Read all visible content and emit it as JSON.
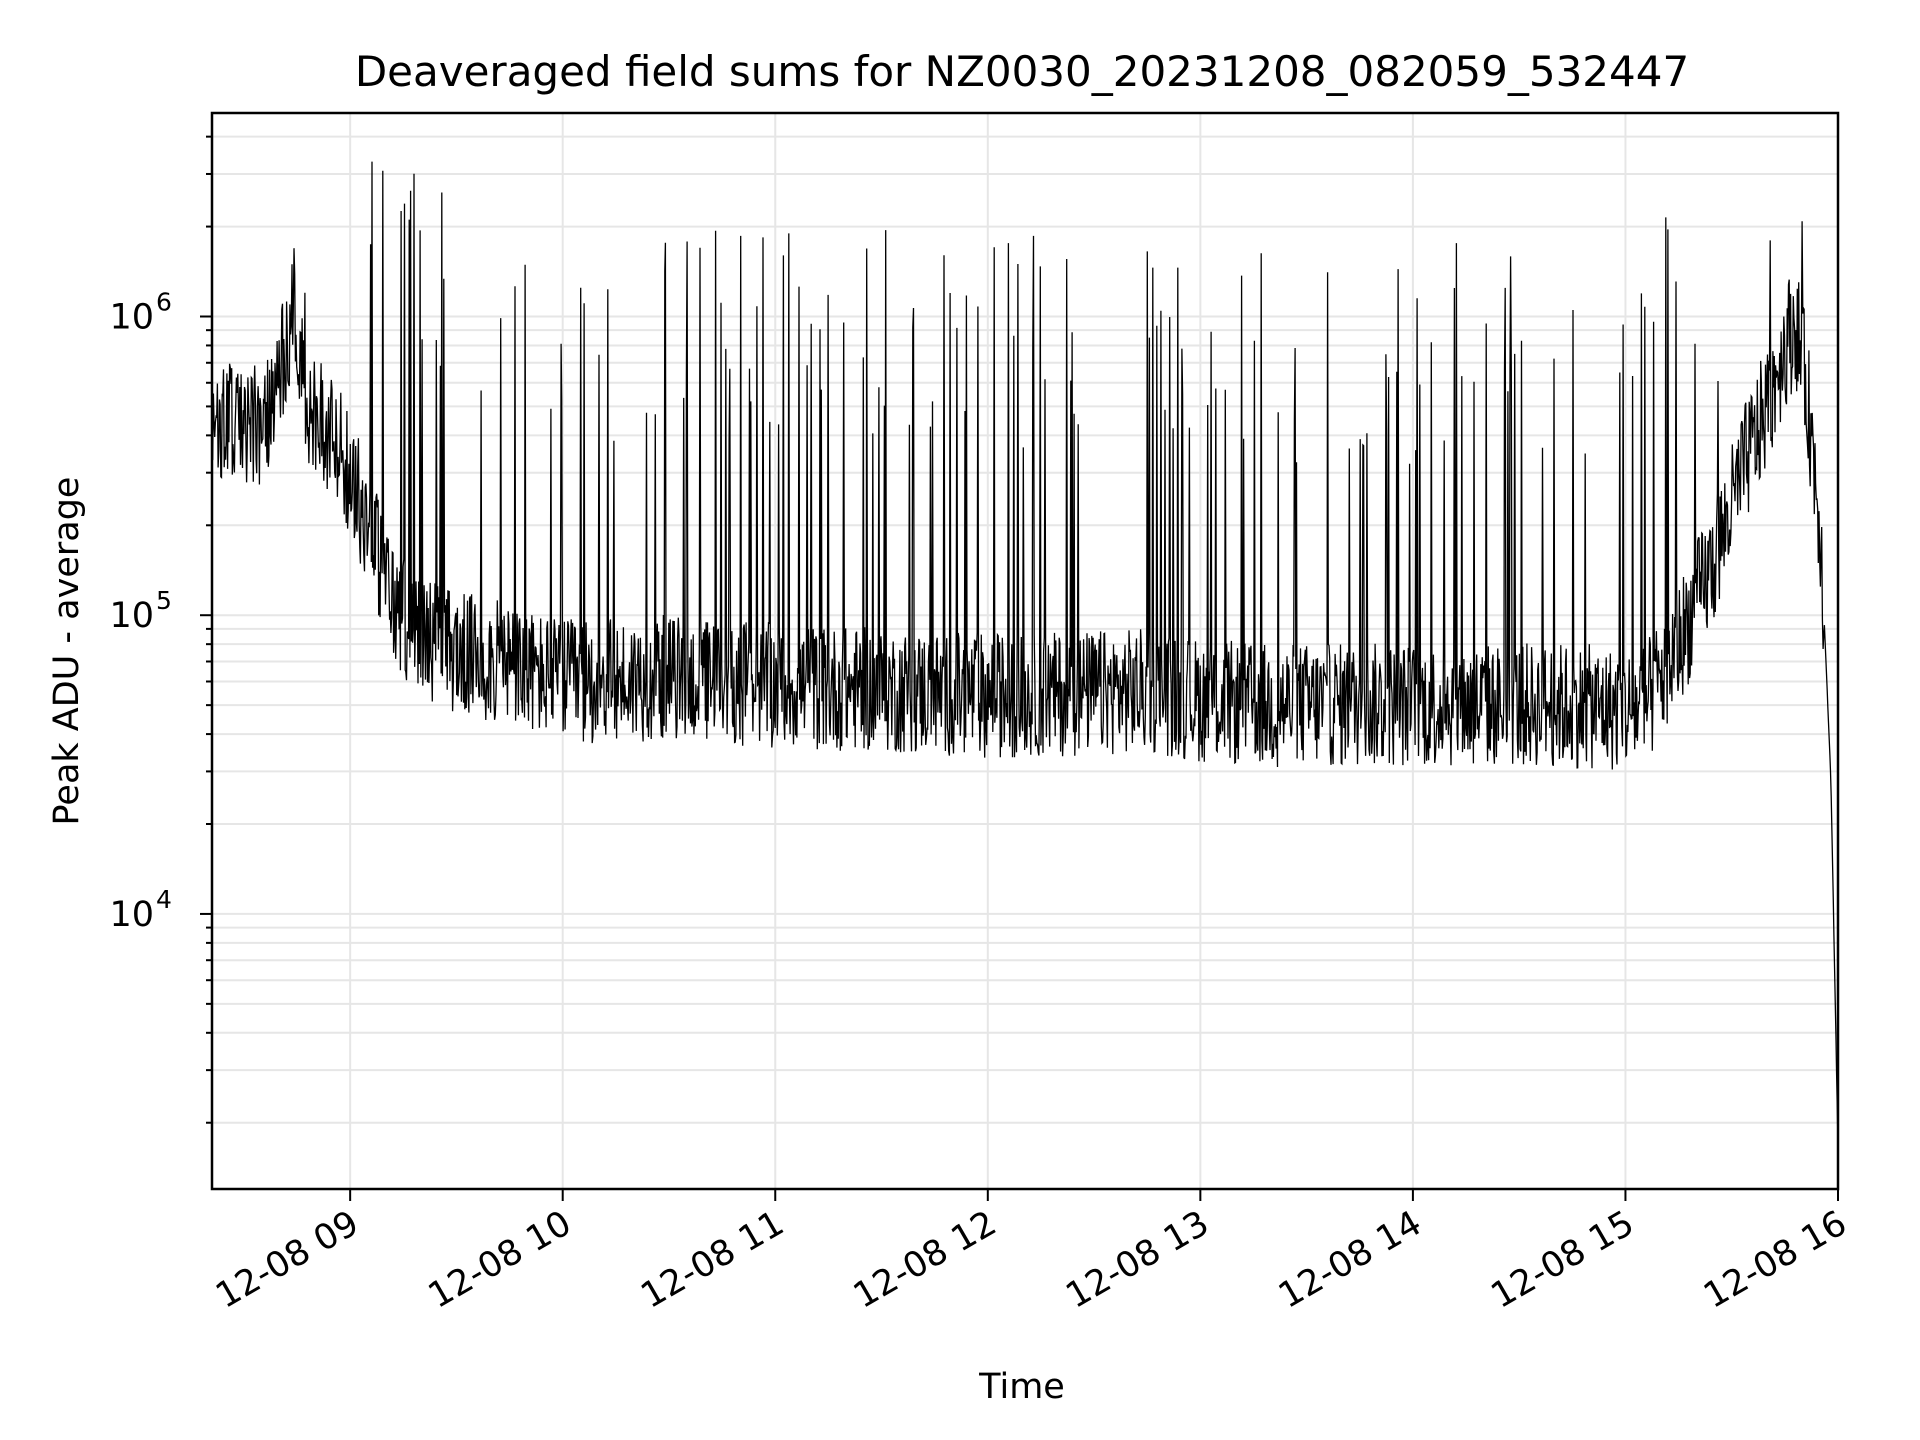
{
  "chart_data": {
    "type": "line",
    "title": "Deaveraged field sums for NZ0030_20231208_082059_532447",
    "xlabel": "Time",
    "ylabel": "Peak ADU - average",
    "y_scale": "log",
    "grid": true,
    "legend": "none",
    "line_color": "#000000",
    "x_ticks": [
      "12-08 09",
      "12-08 10",
      "12-08 11",
      "12-08 12",
      "12-08 13",
      "12-08 14",
      "12-08 15",
      "12-08 16"
    ],
    "y_ticks": [
      {
        "base": "10",
        "exp": "4",
        "value": 10000
      },
      {
        "base": "10",
        "exp": "5",
        "value": 100000
      },
      {
        "base": "10",
        "exp": "6",
        "value": 1000000
      }
    ],
    "xlim": [
      "2023-12-08 08:21",
      "2023-12-08 16:00"
    ],
    "ylim": [
      1200,
      4800000
    ],
    "series": [
      {
        "x": [
          "2023-12-08 08:21",
          "2023-12-08 08:28",
          "2023-12-08 08:34",
          "2023-12-08 08:40",
          "2023-12-08 08:44",
          "2023-12-08 08:48",
          "2023-12-08 08:54",
          "2023-12-08 09:00",
          "2023-12-08 09:06",
          "2023-12-08 09:12",
          "2023-12-08 09:18",
          "2023-12-08 09:30",
          "2023-12-08 09:40",
          "2023-12-08 09:50",
          "2023-12-08 10:00",
          "2023-12-08 10:15",
          "2023-12-08 10:30",
          "2023-12-08 10:45",
          "2023-12-08 11:00",
          "2023-12-08 11:15",
          "2023-12-08 11:30",
          "2023-12-08 11:45",
          "2023-12-08 12:00",
          "2023-12-08 12:15",
          "2023-12-08 12:30",
          "2023-12-08 12:45",
          "2023-12-08 13:00",
          "2023-12-08 13:15",
          "2023-12-08 13:30",
          "2023-12-08 13:45",
          "2023-12-08 14:00",
          "2023-12-08 14:15",
          "2023-12-08 14:30",
          "2023-12-08 14:45",
          "2023-12-08 15:00",
          "2023-12-08 15:06",
          "2023-12-08 15:15",
          "2023-12-08 15:25",
          "2023-12-08 15:33",
          "2023-12-08 15:40",
          "2023-12-08 15:45",
          "2023-12-08 15:48",
          "2023-12-08 15:51",
          "2023-12-08 15:55",
          "2023-12-08 15:58",
          "2023-12-08 16:00"
        ],
        "y": [
          450000,
          470000,
          430000,
          600000,
          1100000,
          450000,
          420000,
          300000,
          190000,
          110000,
          90000,
          75000,
          70000,
          65000,
          60000,
          60000,
          62000,
          60000,
          58000,
          57000,
          56000,
          55000,
          54000,
          54000,
          55000,
          56000,
          52000,
          50000,
          50000,
          50000,
          50000,
          50000,
          50000,
          50000,
          48000,
          50000,
          80000,
          150000,
          300000,
          500000,
          800000,
          950000,
          600000,
          200000,
          28000,
          1700
        ]
      }
    ]
  }
}
